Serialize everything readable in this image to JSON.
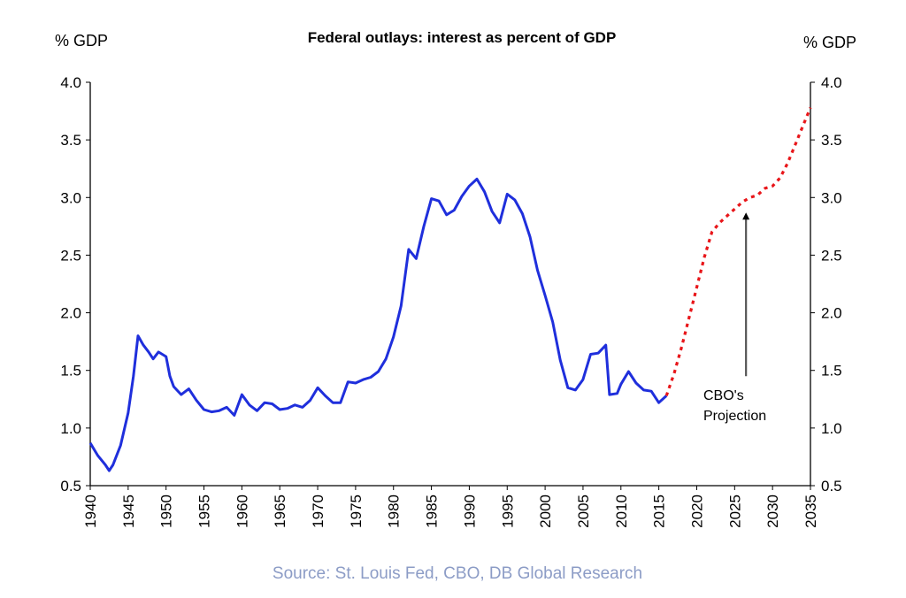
{
  "chart_data": {
    "type": "line",
    "title": "Federal outlays: interest as percent of GDP",
    "ylabel_left": "% GDP",
    "ylabel_right": "% GDP",
    "source": "Source: St. Louis Fed, CBO, DB Global Research",
    "annotation": [
      "CBO's",
      "Projection"
    ],
    "xlim": [
      1940,
      2035
    ],
    "ylim": [
      0.5,
      4.0
    ],
    "x_ticks": [
      1940,
      1945,
      1950,
      1955,
      1960,
      1965,
      1970,
      1975,
      1980,
      1985,
      1990,
      1995,
      2000,
      2005,
      2010,
      2015,
      2020,
      2025,
      2030,
      2035
    ],
    "y_ticks": [
      "0.5",
      "1.0",
      "1.5",
      "2.0",
      "2.5",
      "3.0",
      "3.5",
      "4.0"
    ],
    "grid": false,
    "series": [
      {
        "style": "solid",
        "color": "#1f2fdc",
        "points": [
          [
            1940,
            0.87
          ],
          [
            1941,
            0.76
          ],
          [
            1942,
            0.68
          ],
          [
            1942.5,
            0.63
          ],
          [
            1943,
            0.68
          ],
          [
            1944,
            0.85
          ],
          [
            1945,
            1.13
          ],
          [
            1945.7,
            1.45
          ],
          [
            1946.3,
            1.8
          ],
          [
            1947,
            1.72
          ],
          [
            1947.7,
            1.66
          ],
          [
            1948.3,
            1.6
          ],
          [
            1949,
            1.66
          ],
          [
            1950,
            1.62
          ],
          [
            1950.5,
            1.45
          ],
          [
            1951,
            1.36
          ],
          [
            1952,
            1.29
          ],
          [
            1953,
            1.34
          ],
          [
            1954,
            1.24
          ],
          [
            1955,
            1.16
          ],
          [
            1956,
            1.14
          ],
          [
            1957,
            1.15
          ],
          [
            1958,
            1.18
          ],
          [
            1959,
            1.11
          ],
          [
            1960,
            1.29
          ],
          [
            1961,
            1.2
          ],
          [
            1962,
            1.15
          ],
          [
            1963,
            1.22
          ],
          [
            1964,
            1.21
          ],
          [
            1965,
            1.16
          ],
          [
            1966,
            1.17
          ],
          [
            1967,
            1.2
          ],
          [
            1968,
            1.18
          ],
          [
            1969,
            1.24
          ],
          [
            1970,
            1.35
          ],
          [
            1971,
            1.28
          ],
          [
            1972,
            1.22
          ],
          [
            1973,
            1.22
          ],
          [
            1974,
            1.4
          ],
          [
            1975,
            1.39
          ],
          [
            1976,
            1.42
          ],
          [
            1977,
            1.44
          ],
          [
            1978,
            1.49
          ],
          [
            1979,
            1.6
          ],
          [
            1980,
            1.79
          ],
          [
            1981,
            2.06
          ],
          [
            1982,
            2.55
          ],
          [
            1983,
            2.47
          ],
          [
            1984,
            2.75
          ],
          [
            1985,
            2.99
          ],
          [
            1986,
            2.97
          ],
          [
            1987,
            2.85
          ],
          [
            1988,
            2.89
          ],
          [
            1989,
            3.01
          ],
          [
            1990,
            3.1
          ],
          [
            1991,
            3.16
          ],
          [
            1992,
            3.05
          ],
          [
            1993,
            2.88
          ],
          [
            1994,
            2.78
          ],
          [
            1995,
            3.03
          ],
          [
            1996,
            2.98
          ],
          [
            1997,
            2.86
          ],
          [
            1998,
            2.66
          ],
          [
            1999,
            2.37
          ],
          [
            2000,
            2.15
          ],
          [
            2001,
            1.92
          ],
          [
            2002,
            1.59
          ],
          [
            2003,
            1.35
          ],
          [
            2004,
            1.33
          ],
          [
            2005,
            1.42
          ],
          [
            2006,
            1.64
          ],
          [
            2007,
            1.65
          ],
          [
            2008,
            1.72
          ],
          [
            2008.5,
            1.29
          ],
          [
            2009.5,
            1.3
          ],
          [
            2010,
            1.38
          ],
          [
            2011,
            1.49
          ],
          [
            2012,
            1.39
          ],
          [
            2013,
            1.33
          ],
          [
            2014,
            1.32
          ],
          [
            2015,
            1.22
          ],
          [
            2016,
            1.28
          ]
        ]
      },
      {
        "name": "CBO's Projection",
        "style": "dotted",
        "color": "#e8161a",
        "points": [
          [
            2016,
            1.28
          ],
          [
            2017,
            1.47
          ],
          [
            2018,
            1.7
          ],
          [
            2019,
            1.96
          ],
          [
            2020,
            2.22
          ],
          [
            2021,
            2.48
          ],
          [
            2022,
            2.7
          ],
          [
            2023,
            2.78
          ],
          [
            2024,
            2.84
          ],
          [
            2025,
            2.9
          ],
          [
            2026,
            2.96
          ],
          [
            2027,
            3.0
          ],
          [
            2028,
            3.02
          ],
          [
            2029,
            3.08
          ],
          [
            2030,
            3.1
          ],
          [
            2031,
            3.17
          ],
          [
            2032,
            3.3
          ],
          [
            2033,
            3.46
          ],
          [
            2034,
            3.62
          ],
          [
            2035,
            3.78
          ]
        ]
      }
    ],
    "annotation_arrow": {
      "x": 2026.5,
      "from_y": 1.45,
      "to_y": 2.87
    }
  }
}
